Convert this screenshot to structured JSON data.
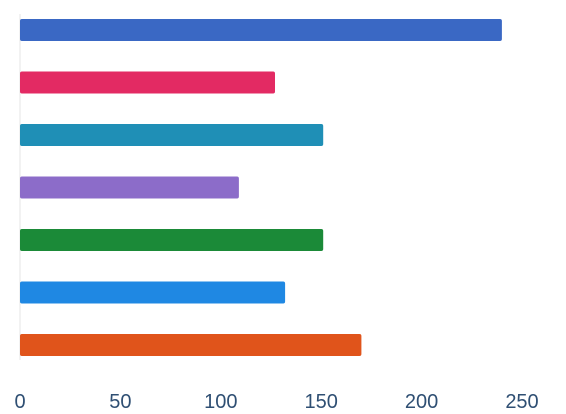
{
  "chart_data": {
    "type": "bar",
    "orientation": "horizontal",
    "title": "",
    "xlabel": "",
    "ylabel": "",
    "xlim": [
      0,
      250
    ],
    "x_ticks": [
      0,
      50,
      100,
      150,
      200,
      250
    ],
    "x_tick_labels": [
      "0",
      "50",
      "100",
      "150",
      "200",
      "250"
    ],
    "grid": false,
    "legend": "none",
    "bars": [
      {
        "value": 240,
        "color": "#3a68c4"
      },
      {
        "value": 127,
        "color": "#e32a63"
      },
      {
        "value": 151,
        "color": "#1f8fb6"
      },
      {
        "value": 109,
        "color": "#8c6cc9"
      },
      {
        "value": 151,
        "color": "#1b8a38"
      },
      {
        "value": 132,
        "color": "#1f88e3"
      },
      {
        "value": 170,
        "color": "#e0541b"
      }
    ]
  }
}
